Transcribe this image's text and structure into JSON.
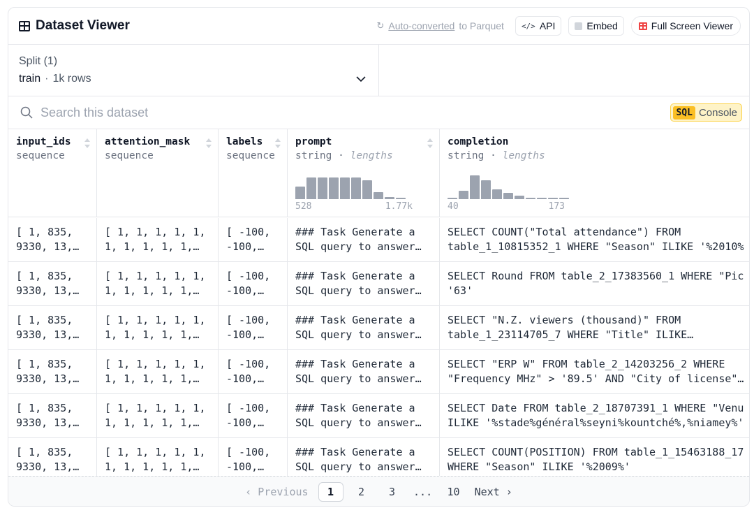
{
  "header": {
    "title": "Dataset Viewer",
    "converted_link": "Auto-converted",
    "converted_text": "to Parquet",
    "api_label": "API",
    "embed_label": "Embed",
    "fullscreen_label": "Full Screen Viewer"
  },
  "split": {
    "label": "Split (1)",
    "value": "train",
    "separator": "·",
    "rows": "1k rows"
  },
  "search": {
    "placeholder": "Search this dataset",
    "sql_tag": "SQL",
    "sql_label": "Console"
  },
  "columns": [
    {
      "name": "input_ids",
      "type": "sequence"
    },
    {
      "name": "attention_mask",
      "type": "sequence"
    },
    {
      "name": "labels",
      "type": "sequence"
    },
    {
      "name": "prompt",
      "type": "string",
      "type_extra": "lengths",
      "hist_min": "528",
      "hist_max": "1.77k"
    },
    {
      "name": "completion",
      "type": "string",
      "type_extra": "lengths",
      "hist_min": "40",
      "hist_max": "173"
    }
  ],
  "type_separator": "·",
  "prompt_hist": [
    0.52,
    0.92,
    0.92,
    0.92,
    0.92,
    0.92,
    0.8,
    0.3,
    0.1,
    0.05
  ],
  "completion_hist": [
    0.05,
    0.35,
    1.0,
    0.78,
    0.42,
    0.25,
    0.15,
    0.06,
    0.05,
    0.05,
    0.05
  ],
  "rows": [
    {
      "input_ids": "[ 1, 835,\n9330, 13,…",
      "attention_mask": "[ 1, 1, 1, 1, 1,\n1, 1, 1, 1, 1,…",
      "labels": "[ -100,\n-100,…",
      "prompt": "### Task Generate a\nSQL query to answer…",
      "completion": "SELECT COUNT(\"Total attendance\") FROM\ntable_1_10815352_1 WHERE \"Season\" ILIKE '%2010%"
    },
    {
      "input_ids": "[ 1, 835,\n9330, 13,…",
      "attention_mask": "[ 1, 1, 1, 1, 1,\n1, 1, 1, 1, 1,…",
      "labels": "[ -100,\n-100,…",
      "prompt": "### Task Generate a\nSQL query to answer…",
      "completion": "SELECT Round FROM table_2_17383560_1 WHERE \"Pic\n'63'"
    },
    {
      "input_ids": "[ 1, 835,\n9330, 13,…",
      "attention_mask": "[ 1, 1, 1, 1, 1,\n1, 1, 1, 1, 1,…",
      "labels": "[ -100,\n-100,…",
      "prompt": "### Task Generate a\nSQL query to answer…",
      "completion": "SELECT \"N.Z. viewers (thousand)\" FROM\ntable_1_23114705_7 WHERE \"Title\" ILIKE…"
    },
    {
      "input_ids": "[ 1, 835,\n9330, 13,…",
      "attention_mask": "[ 1, 1, 1, 1, 1,\n1, 1, 1, 1, 1,…",
      "labels": "[ -100,\n-100,…",
      "prompt": "### Task Generate a\nSQL query to answer…",
      "completion": "SELECT \"ERP W\" FROM table_2_14203256_2 WHERE\n\"Frequency MHz\" > '89.5' AND \"City of license\"…"
    },
    {
      "input_ids": "[ 1, 835,\n9330, 13,…",
      "attention_mask": "[ 1, 1, 1, 1, 1,\n1, 1, 1, 1, 1,…",
      "labels": "[ -100,\n-100,…",
      "prompt": "### Task Generate a\nSQL query to answer…",
      "completion": "SELECT Date FROM table_2_18707391_1 WHERE \"Venu\nILIKE '%stade%général%seyni%kountché%,%niamey%'"
    },
    {
      "input_ids": "[ 1, 835,\n9330, 13,…",
      "attention_mask": "[ 1, 1, 1, 1, 1,\n1, 1, 1, 1, 1,…",
      "labels": "[ -100,\n-100,…",
      "prompt": "### Task Generate a\nSQL query to answer…",
      "completion": "SELECT COUNT(POSITION) FROM table_1_15463188_17\nWHERE \"Season\" ILIKE '%2009%'"
    }
  ],
  "pagination": {
    "prev": "‹ Previous",
    "pages": [
      "1",
      "2",
      "3",
      "...",
      "10"
    ],
    "current": "1",
    "next": "Next ›"
  }
}
